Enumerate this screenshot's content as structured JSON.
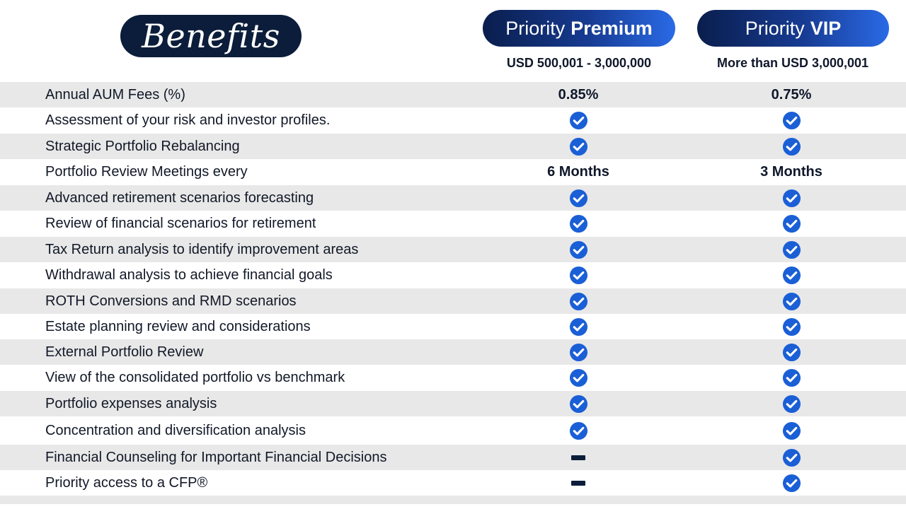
{
  "header": {
    "benefits_title": "Benefits",
    "plans": [
      {
        "name_prefix": "Priority",
        "name_strong": "Premium",
        "range": "USD 500,001 - 3,000,000"
      },
      {
        "name_prefix": "Priority",
        "name_strong": "VIP",
        "range": "More than USD 3,000,001"
      }
    ]
  },
  "colors": {
    "navy": "#0b1d3a",
    "accent_blue": "#1a5fd6",
    "row_shade": "#e8e8e8"
  },
  "icons": {
    "check": "check-circle-icon",
    "not_included": "dash-icon"
  },
  "rows": [
    {
      "label": "Annual AUM Fees (%)",
      "premium": {
        "type": "text",
        "value": "0.85%"
      },
      "vip": {
        "type": "text",
        "value": "0.75%"
      }
    },
    {
      "label": "Assessment of your risk and investor profiles.",
      "premium": {
        "type": "check"
      },
      "vip": {
        "type": "check"
      }
    },
    {
      "label": "Strategic Portfolio Rebalancing",
      "premium": {
        "type": "check"
      },
      "vip": {
        "type": "check"
      }
    },
    {
      "label": "Portfolio Review Meetings every",
      "premium": {
        "type": "text",
        "value": "6 Months"
      },
      "vip": {
        "type": "text",
        "value": "3 Months"
      }
    },
    {
      "label": "Advanced retirement scenarios forecasting",
      "premium": {
        "type": "check"
      },
      "vip": {
        "type": "check"
      }
    },
    {
      "label": "Review of financial scenarios for retirement",
      "premium": {
        "type": "check"
      },
      "vip": {
        "type": "check"
      }
    },
    {
      "label": "Tax Return analysis to identify improvement areas",
      "premium": {
        "type": "check"
      },
      "vip": {
        "type": "check"
      }
    },
    {
      "label": "Withdrawal analysis to achieve financial goals",
      "premium": {
        "type": "check"
      },
      "vip": {
        "type": "check"
      }
    },
    {
      "label": "ROTH Conversions and RMD scenarios",
      "premium": {
        "type": "check"
      },
      "vip": {
        "type": "check"
      }
    },
    {
      "label": "Estate planning review and considerations",
      "premium": {
        "type": "check"
      },
      "vip": {
        "type": "check"
      }
    },
    {
      "label": "External Portfolio Review",
      "premium": {
        "type": "check"
      },
      "vip": {
        "type": "check"
      }
    },
    {
      "label": "View of the consolidated portfolio vs benchmark",
      "premium": {
        "type": "check"
      },
      "vip": {
        "type": "check"
      }
    },
    {
      "label": "Portfolio expenses analysis",
      "premium": {
        "type": "check"
      },
      "vip": {
        "type": "check"
      }
    },
    {
      "label": "Concentration and diversification analysis",
      "premium": {
        "type": "check"
      },
      "vip": {
        "type": "check"
      }
    },
    {
      "label": "Financial Counseling for Important Financial Decisions",
      "premium": {
        "type": "dash"
      },
      "vip": {
        "type": "check"
      }
    },
    {
      "label": "Priority access to a CFP®",
      "premium": {
        "type": "dash"
      },
      "vip": {
        "type": "check"
      }
    }
  ]
}
